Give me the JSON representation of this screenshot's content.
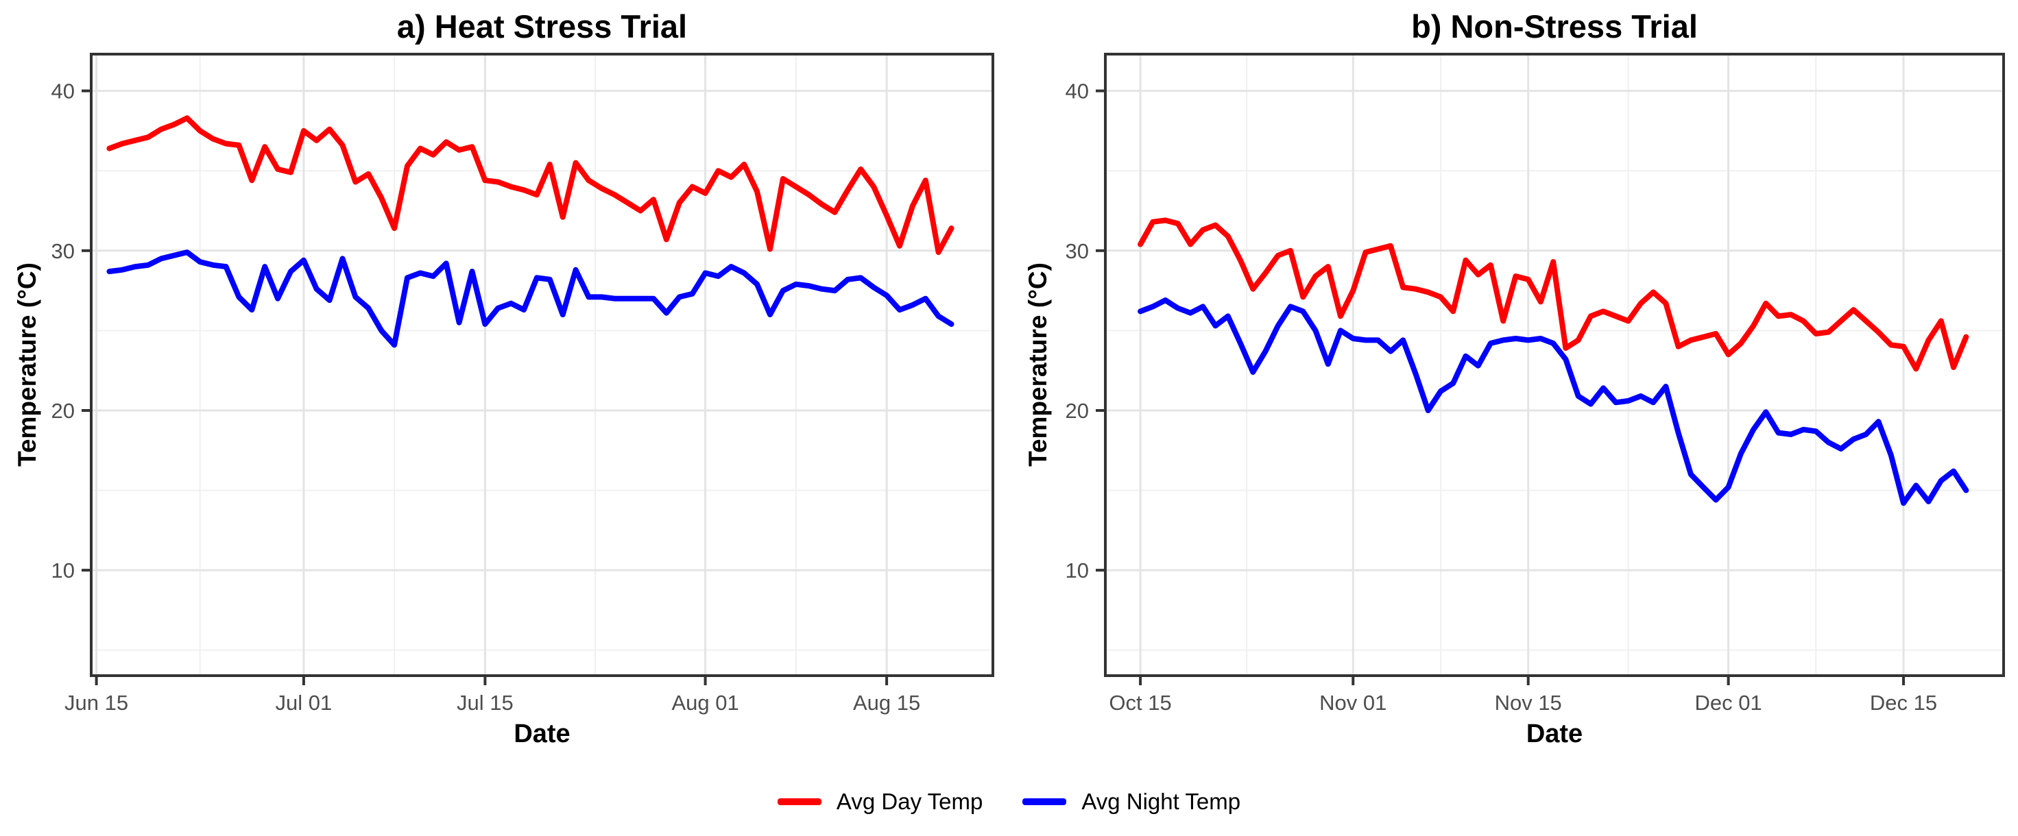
{
  "figure": {
    "legend": {
      "items": [
        {
          "label": "Avg Day Temp",
          "color": "#FF0000"
        },
        {
          "label": "Avg Night Temp",
          "color": "#0000FF"
        }
      ]
    }
  },
  "style": {
    "background": "#FFFFFF",
    "grid_major": "#E4E4E4",
    "grid_minor": "#F0F0F0",
    "panel_border": "#333333",
    "tick_mark_color": "#333333",
    "tick_label_color": "#4D4D4D",
    "title_color": "#000000"
  },
  "chart_data": [
    {
      "type": "line",
      "title": "a) Heat Stress Trial",
      "xlabel": "Date",
      "ylabel": "Temperature (°C)",
      "legend_position": "bottom",
      "grid": "major+minor",
      "x_unit": "days since Jun 15",
      "x_domain": [
        -0.4,
        69.2
      ],
      "y_domain": [
        3.4,
        42.3
      ],
      "y_ticks": [
        10,
        20,
        30,
        40
      ],
      "y_minor": [
        5,
        15,
        25,
        35
      ],
      "x_ticks": [
        {
          "label": "Jun 15",
          "day": 0
        },
        {
          "label": "Jul 01",
          "day": 16
        },
        {
          "label": "Jul 15",
          "day": 30
        },
        {
          "label": "Aug 01",
          "day": 47
        },
        {
          "label": "Aug 15",
          "day": 61
        }
      ],
      "x_minor_days": [
        8,
        23,
        38.5,
        54
      ],
      "x_start_day": 1,
      "series": [
        {
          "name": "Avg Day Temp",
          "color": "#FF0000",
          "values": [
            36.4,
            36.7,
            36.9,
            37.1,
            37.6,
            37.9,
            38.3,
            37.5,
            37.0,
            36.7,
            36.6,
            34.4,
            36.5,
            35.1,
            34.9,
            37.5,
            36.9,
            37.6,
            36.6,
            34.3,
            34.8,
            33.3,
            31.4,
            35.3,
            36.4,
            36.0,
            36.8,
            36.3,
            36.5,
            34.4,
            34.3,
            34.0,
            33.8,
            33.5,
            35.4,
            32.1,
            35.5,
            34.4,
            33.9,
            33.5,
            33.0,
            32.5,
            33.2,
            30.7,
            33.0,
            34.0,
            33.6,
            35.0,
            34.6,
            35.4,
            33.7,
            30.1,
            34.5,
            34.0,
            33.5,
            32.9,
            32.4,
            33.8,
            35.1,
            34.0,
            32.2,
            30.3,
            32.8,
            34.4,
            29.9,
            31.4
          ]
        },
        {
          "name": "Avg Night Temp",
          "color": "#0000FF",
          "values": [
            28.7,
            28.8,
            29.0,
            29.1,
            29.5,
            29.7,
            29.9,
            29.3,
            29.1,
            29.0,
            27.1,
            26.3,
            29.0,
            27.0,
            28.7,
            29.4,
            27.6,
            26.9,
            29.5,
            27.1,
            26.4,
            25.0,
            24.1,
            28.3,
            28.6,
            28.4,
            29.2,
            25.5,
            28.7,
            25.4,
            26.4,
            26.7,
            26.3,
            28.3,
            28.2,
            26.0,
            28.8,
            27.1,
            27.1,
            27.0,
            27.0,
            27.0,
            27.0,
            26.1,
            27.1,
            27.3,
            28.6,
            28.4,
            29.0,
            28.6,
            27.9,
            26.0,
            27.5,
            27.9,
            27.8,
            27.6,
            27.5,
            28.2,
            28.3,
            27.7,
            27.2,
            26.3,
            26.6,
            27.0,
            25.9,
            25.4
          ]
        }
      ]
    },
    {
      "type": "line",
      "title": "b) Non-Stress Trial",
      "xlabel": "Date",
      "ylabel": "Temperature (°C)",
      "legend_position": "bottom",
      "grid": "major+minor",
      "x_unit": "days since Oct 15",
      "x_domain": [
        -2.8,
        69.0
      ],
      "y_domain": [
        3.4,
        42.3
      ],
      "y_ticks": [
        10,
        20,
        30,
        40
      ],
      "y_minor": [
        5,
        15,
        25,
        35
      ],
      "x_ticks": [
        {
          "label": "Oct 15",
          "day": 0
        },
        {
          "label": "Nov 01",
          "day": 17
        },
        {
          "label": "Nov 15",
          "day": 31
        },
        {
          "label": "Dec 01",
          "day": 47
        },
        {
          "label": "Dec 15",
          "day": 61
        }
      ],
      "x_minor_days": [
        8.5,
        24,
        39,
        54
      ],
      "x_start_day": 0,
      "series": [
        {
          "name": "Avg Day Temp",
          "color": "#FF0000",
          "values": [
            30.4,
            31.8,
            31.9,
            31.7,
            30.4,
            31.3,
            31.6,
            30.9,
            29.4,
            27.6,
            28.6,
            29.7,
            30.0,
            27.1,
            28.4,
            29.0,
            25.9,
            27.5,
            29.9,
            30.1,
            30.3,
            27.7,
            27.6,
            27.4,
            27.1,
            26.2,
            29.4,
            28.5,
            29.1,
            25.6,
            28.4,
            28.2,
            26.8,
            29.3,
            23.9,
            24.4,
            25.9,
            26.2,
            25.9,
            25.6,
            26.7,
            27.4,
            26.7,
            24.0,
            24.4,
            24.6,
            24.8,
            23.5,
            24.2,
            25.3,
            26.7,
            25.9,
            26.0,
            25.6,
            24.8,
            24.9,
            25.6,
            26.3,
            25.6,
            24.9,
            24.1,
            24.0,
            22.6,
            24.4,
            25.6,
            22.7,
            24.6
          ]
        },
        {
          "name": "Avg Night Temp",
          "color": "#0000FF",
          "values": [
            26.2,
            26.5,
            26.9,
            26.4,
            26.1,
            26.5,
            25.3,
            25.9,
            24.2,
            22.4,
            23.7,
            25.3,
            26.5,
            26.2,
            25.0,
            22.9,
            25.0,
            24.5,
            24.4,
            24.4,
            23.7,
            24.4,
            22.3,
            20.0,
            21.2,
            21.7,
            23.4,
            22.8,
            24.2,
            24.4,
            24.5,
            24.4,
            24.5,
            24.2,
            23.2,
            20.9,
            20.4,
            21.4,
            20.5,
            20.6,
            20.9,
            20.5,
            21.5,
            18.6,
            16.0,
            15.2,
            14.4,
            15.2,
            17.3,
            18.8,
            19.9,
            18.6,
            18.5,
            18.8,
            18.7,
            18.0,
            17.6,
            18.2,
            18.5,
            19.3,
            17.2,
            14.2,
            15.3,
            14.3,
            15.6,
            16.2,
            15.0
          ]
        }
      ]
    }
  ]
}
